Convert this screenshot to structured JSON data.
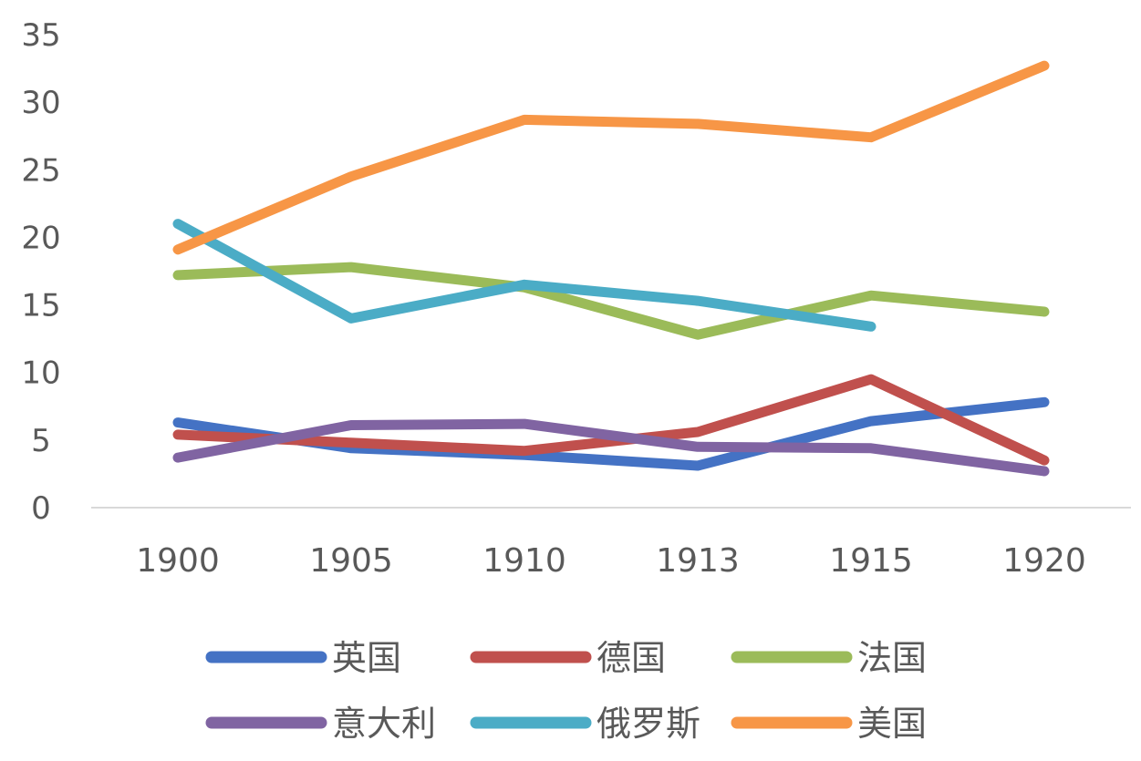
{
  "chart_data": {
    "type": "line",
    "categories": [
      "1900",
      "1905",
      "1910",
      "1913",
      "1915",
      "1920"
    ],
    "ylim": [
      0,
      35
    ],
    "yticks": [
      0,
      5,
      10,
      15,
      20,
      25,
      30,
      35
    ],
    "grid": false,
    "legend_position": "bottom",
    "series": [
      {
        "name": "英国",
        "color": "#4472C4",
        "values": [
          6.3,
          4.4,
          3.9,
          3.1,
          6.4,
          7.8
        ]
      },
      {
        "name": "德国",
        "color": "#C0504D",
        "values": [
          5.4,
          4.8,
          4.2,
          5.6,
          9.5,
          3.5
        ]
      },
      {
        "name": "法国",
        "color": "#9BBB59",
        "values": [
          17.2,
          17.8,
          16.3,
          12.8,
          15.7,
          14.5
        ]
      },
      {
        "name": "意大利",
        "color": "#8064A2",
        "values": [
          3.7,
          6.1,
          6.2,
          4.5,
          4.4,
          2.7
        ]
      },
      {
        "name": "俄罗斯",
        "color": "#4BACC6",
        "values": [
          21.0,
          14.0,
          16.5,
          15.3,
          13.4,
          null
        ]
      },
      {
        "name": "美国",
        "color": "#F79646",
        "values": [
          19.1,
          24.5,
          28.7,
          28.4,
          27.4,
          32.7
        ]
      }
    ]
  }
}
